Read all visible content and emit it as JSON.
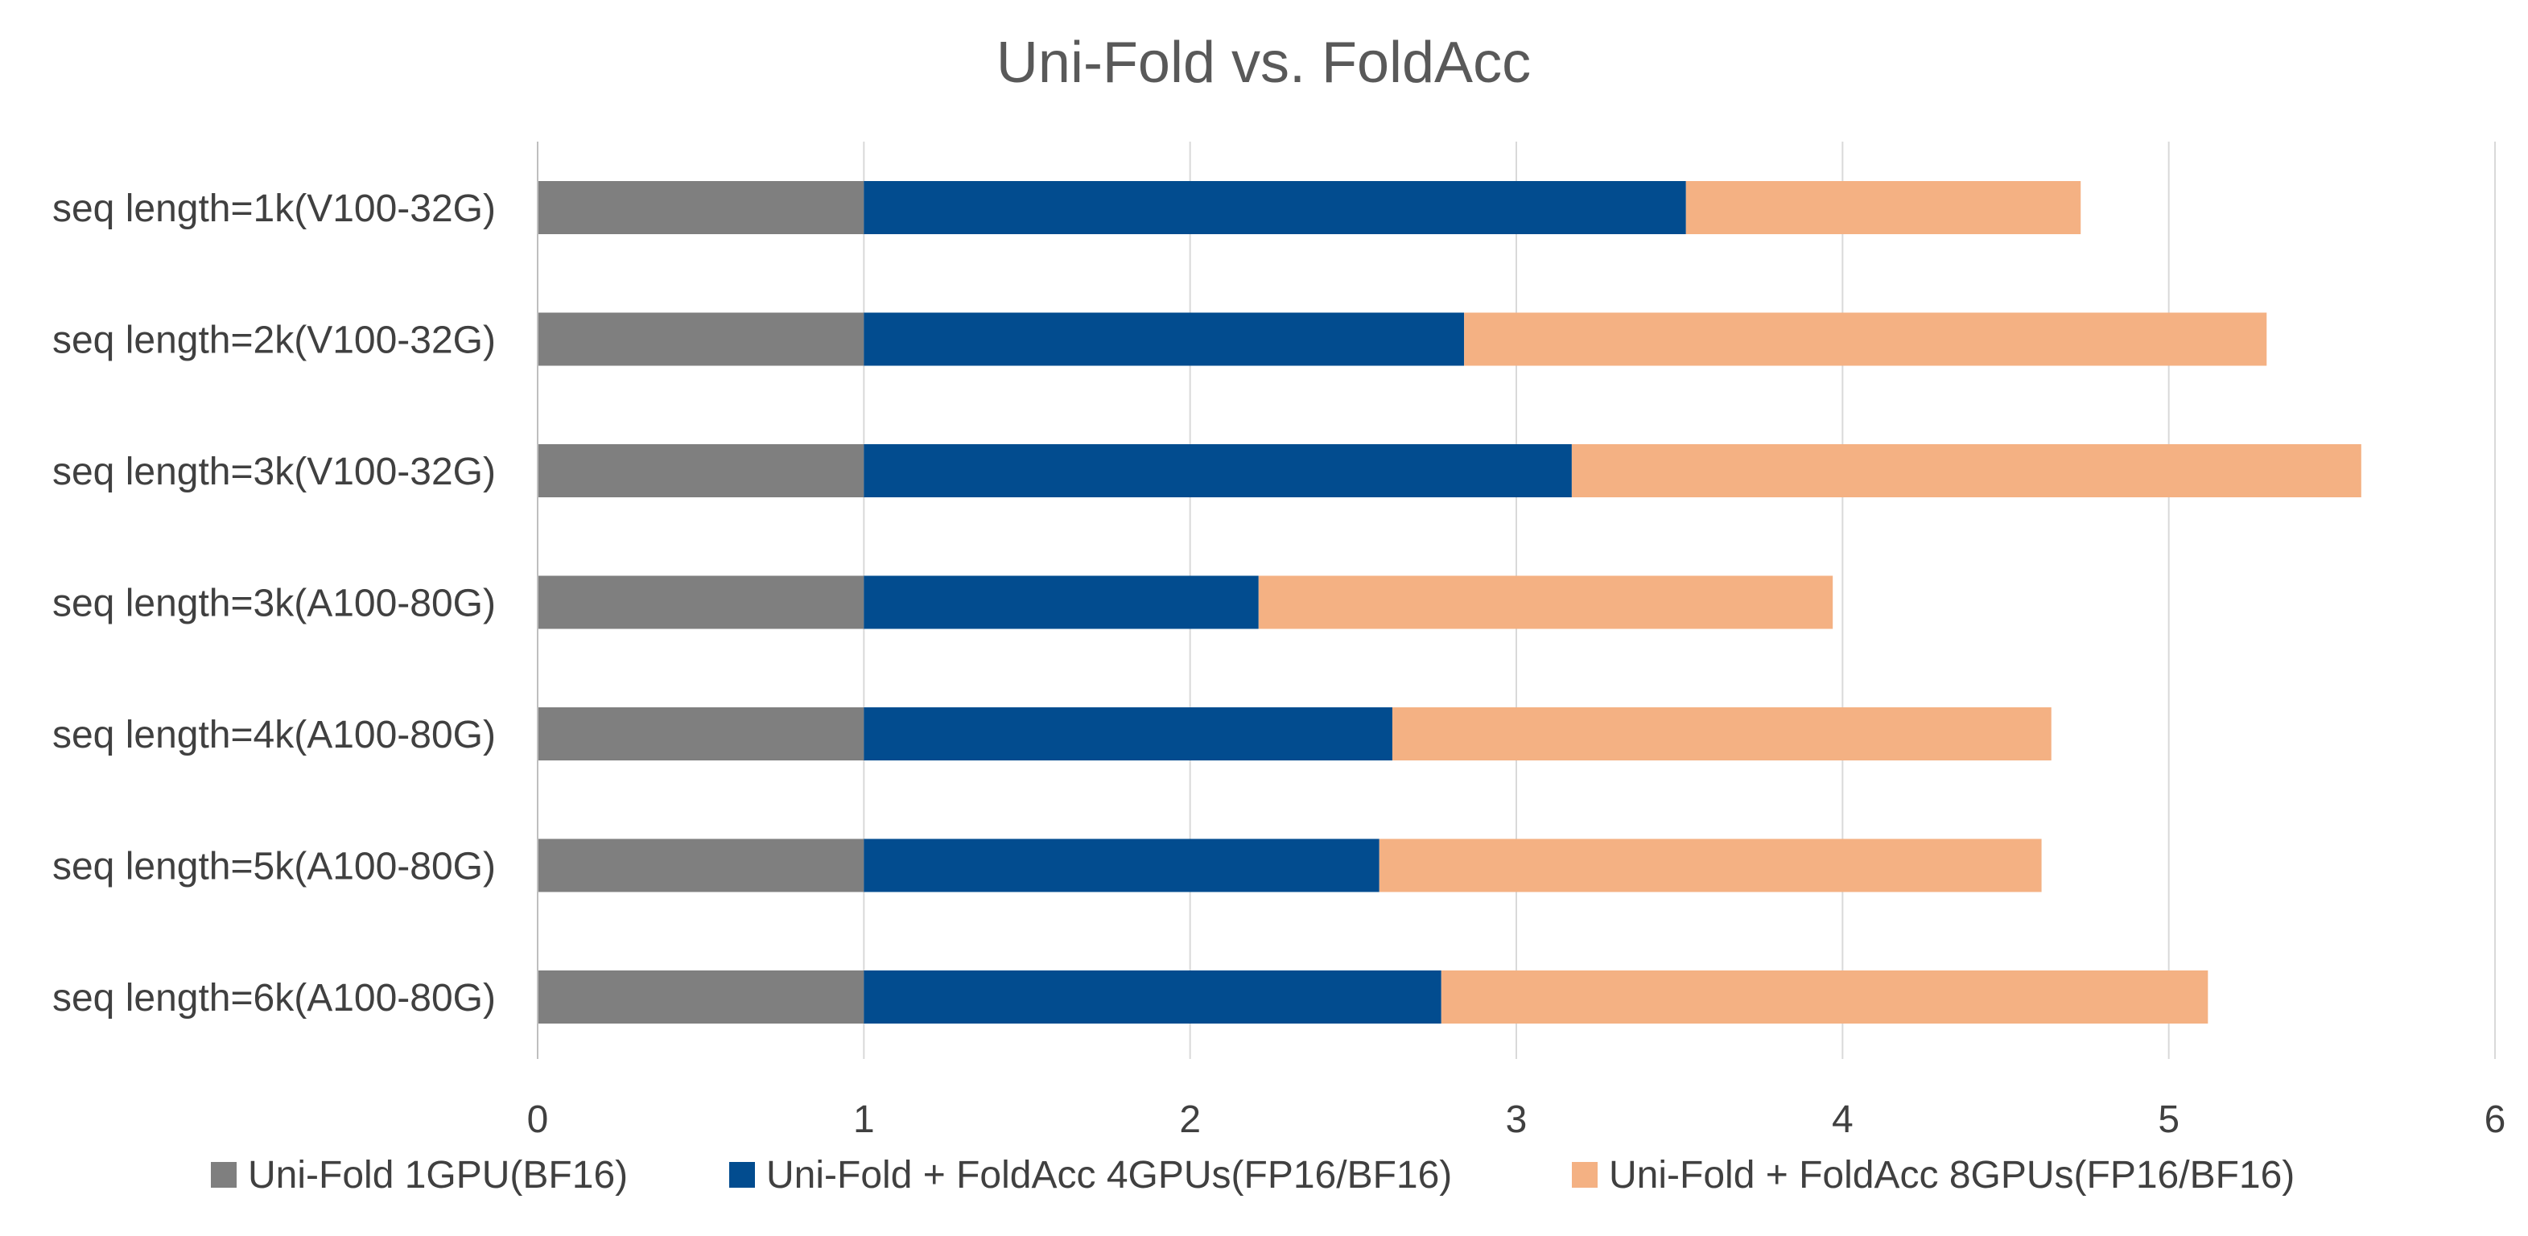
{
  "chart_data": {
    "type": "bar",
    "orientation": "horizontal",
    "stacked": true,
    "title": "Uni-Fold vs. FoldAcc",
    "xlabel": "",
    "ylabel": "",
    "categories": [
      "seq length=1k(V100-32G)",
      "seq length=2k(V100-32G)",
      "seq length=3k(V100-32G)",
      "seq length=3k(A100-80G)",
      "seq length=4k(A100-80G)",
      "seq length=5k(A100-80G)",
      "seq length=6k(A100-80G)"
    ],
    "series": [
      {
        "name": "Uni-Fold 1GPU(BF16)",
        "color": "#7f7f7f",
        "values": [
          1,
          1,
          1,
          1,
          1,
          1,
          1
        ]
      },
      {
        "name": "Uni-Fold + FoldAcc 4GPUs(FP16/BF16)",
        "color": "#024c8f",
        "values": [
          2.52,
          1.84,
          2.17,
          1.21,
          1.62,
          1.58,
          1.77
        ]
      },
      {
        "name": "Uni-Fold + FoldAcc 8GPUs(FP16/BF16)",
        "color": "#f4b183",
        "values": [
          1.21,
          2.46,
          2.42,
          1.76,
          2.02,
          2.03,
          2.35
        ]
      }
    ],
    "xlim": [
      0,
      6
    ],
    "x_ticks": [
      "0",
      "1",
      "2",
      "3",
      "4",
      "5",
      "6"
    ],
    "grid": true,
    "legend_position": "bottom"
  }
}
